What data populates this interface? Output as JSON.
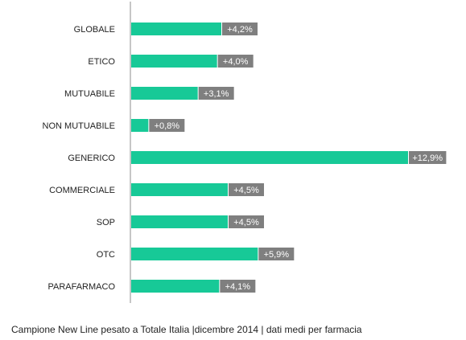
{
  "chart_data": {
    "type": "bar",
    "orientation": "horizontal",
    "categories": [
      "GLOBALE",
      "ETICO",
      "MUTUABILE",
      "NON MUTUABILE",
      "GENERICO",
      "COMMERCIALE",
      "SOP",
      "OTC",
      "PARAFARMACO"
    ],
    "values": [
      4.2,
      4.0,
      3.1,
      0.8,
      12.9,
      4.5,
      4.5,
      5.9,
      4.1
    ],
    "value_labels": [
      "+4,2%",
      "+4,0%",
      "+3,1%",
      "+0,8%",
      "+12,9%",
      "+4,5%",
      "+4,5%",
      "+5,9%",
      "+4,1%"
    ],
    "xlim": [
      0,
      13.5
    ],
    "grid": false,
    "title": "",
    "xlabel": "",
    "ylabel": ""
  },
  "colors": {
    "bar": "#17c997",
    "label_box": "#7f7f7f",
    "axis": "#8c8c8c"
  },
  "caption": "Campione New Line pesato a Totale Italia |dicembre 2014 | dati medi per farmacia"
}
